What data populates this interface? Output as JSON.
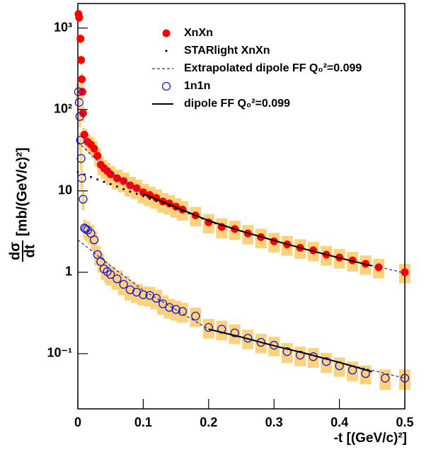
{
  "chart_data": {
    "type": "scatter",
    "y_label_numerator": "dσ",
    "y_label_denominator": "dt",
    "y_label_unit": "[mb/(GeV/c)²]",
    "x_label": "-t [(GeV/c)²]",
    "xlim": [
      0,
      0.5
    ],
    "xticks": [
      0,
      0.1,
      0.2,
      0.3,
      0.4,
      0.5
    ],
    "ylim": [
      0.021,
      2000
    ],
    "log_y": true,
    "yticks": [
      {
        "value": 0.1,
        "label": "10⁻¹"
      },
      1,
      10,
      {
        "value": 100,
        "label": "10²"
      },
      {
        "value": 1000,
        "label": "10³"
      }
    ],
    "legend": "top-center",
    "series": [
      {
        "name": "XnXn",
        "style": "filled-circle",
        "color": "#ff0000",
        "band_color": "#fcd27e",
        "x": [
          0.001,
          0.002,
          0.004,
          0.005,
          0.006,
          0.007,
          0.008,
          0.01,
          0.015,
          0.02,
          0.025,
          0.03,
          0.035,
          0.04,
          0.045,
          0.05,
          0.06,
          0.07,
          0.08,
          0.09,
          0.1,
          0.11,
          0.12,
          0.13,
          0.14,
          0.15,
          0.16,
          0.18,
          0.2,
          0.22,
          0.24,
          0.26,
          0.28,
          0.3,
          0.32,
          0.34,
          0.36,
          0.38,
          0.4,
          0.42,
          0.44,
          0.46,
          0.5
        ],
        "values": [
          1480,
          1340,
          740,
          405,
          235,
          165,
          90,
          49,
          40,
          37,
          33,
          27,
          21,
          19,
          17.5,
          16,
          14.3,
          13.2,
          11.7,
          10.8,
          9.6,
          8.9,
          8.2,
          7.4,
          7.0,
          6.4,
          5.9,
          5.0,
          4.1,
          3.6,
          3.4,
          3.0,
          2.7,
          2.4,
          2.2,
          2.0,
          1.86,
          1.65,
          1.52,
          1.4,
          1.27,
          1.15,
          1.0
        ],
        "errors": [
          200,
          180,
          100,
          55,
          40,
          30,
          20,
          10,
          9,
          9,
          8,
          7,
          5.5,
          5,
          4.7,
          4.3,
          3.9,
          3.6,
          3.2,
          2.9,
          2.6,
          2.4,
          2.2,
          2.0,
          1.9,
          1.7,
          1.6,
          1.35,
          1.1,
          1.0,
          0.9,
          0.8,
          0.73,
          0.65,
          0.6,
          0.54,
          0.5,
          0.45,
          0.41,
          0.38,
          0.34,
          0.31,
          0.27
        ]
      },
      {
        "name": "STARlight XnXn",
        "style": "dot",
        "color": "#000000",
        "x": [
          0,
          0.01,
          0.02,
          0.03,
          0.04,
          0.05,
          0.06,
          0.07,
          0.08,
          0.09,
          0.1,
          0.11,
          0.12,
          0.13,
          0.14,
          0.15,
          0.16,
          0.17,
          0.18,
          0.19,
          0.2,
          0.21,
          0.22
        ],
        "values": [
          17,
          15.9,
          14.8,
          13.8,
          12.9,
          12.1,
          11.3,
          10.5,
          9.8,
          9.2,
          8.6,
          8.0,
          7.5,
          7.0,
          6.5,
          6.1,
          5.7,
          5.3,
          5.0,
          4.6,
          4.3,
          4.0,
          3.8
        ]
      },
      {
        "name": "Extrapolated dipole FF Q₀²=0.099",
        "style": "dashed",
        "color": "#2222dd",
        "x": [
          0,
          0.02,
          0.05,
          0.1,
          0.2,
          0.3,
          0.4,
          0.5,
          null,
          0,
          0.05,
          0.1,
          0.2,
          0.3,
          0.4,
          0.5
        ],
        "values": [
          40,
          28,
          17,
          9.2,
          4.3,
          2.45,
          1.5,
          0.98,
          null,
          2.5,
          1.2,
          0.6,
          0.2,
          0.125,
          0.078,
          0.05
        ]
      },
      {
        "name": "1n1n",
        "style": "open-circle",
        "color": "#1a1acc",
        "band_color": "#fcd27e",
        "x": [
          0.001,
          0.002,
          0.003,
          0.004,
          0.005,
          0.006,
          0.008,
          0.01,
          0.012,
          0.015,
          0.02,
          0.025,
          0.03,
          0.035,
          0.04,
          0.045,
          0.05,
          0.06,
          0.07,
          0.08,
          0.09,
          0.1,
          0.11,
          0.12,
          0.13,
          0.14,
          0.15,
          0.16,
          0.18,
          0.2,
          0.22,
          0.24,
          0.26,
          0.28,
          0.3,
          0.32,
          0.34,
          0.36,
          0.38,
          0.4,
          0.42,
          0.44,
          0.47,
          0.5
        ],
        "values": [
          165,
          122,
          82,
          42,
          25,
          14.3,
          7.9,
          3.5,
          3.4,
          3.3,
          3.0,
          2.5,
          1.65,
          1.35,
          1.1,
          1.02,
          0.94,
          0.83,
          0.71,
          0.61,
          0.57,
          0.53,
          0.52,
          0.48,
          0.41,
          0.37,
          0.35,
          0.33,
          0.29,
          0.21,
          0.2,
          0.18,
          0.155,
          0.138,
          0.127,
          0.106,
          0.096,
          0.092,
          0.08,
          0.071,
          0.063,
          0.057,
          0.05,
          0.05
        ],
        "errors": [
          45,
          33,
          22,
          11,
          7,
          3.9,
          2.1,
          0.95,
          0.9,
          0.9,
          0.8,
          0.68,
          0.45,
          0.36,
          0.3,
          0.28,
          0.25,
          0.22,
          0.19,
          0.16,
          0.15,
          0.14,
          0.14,
          0.13,
          0.11,
          0.1,
          0.095,
          0.09,
          0.078,
          0.057,
          0.054,
          0.049,
          0.042,
          0.037,
          0.034,
          0.029,
          0.026,
          0.025,
          0.022,
          0.019,
          0.017,
          0.015,
          0.014,
          0.014
        ]
      },
      {
        "name": "dipole FF  Q₀²=0.099",
        "style": "solid",
        "color": "#000000",
        "x": [
          0.1,
          0.15,
          0.2,
          0.25,
          0.3,
          0.35,
          0.4,
          0.45,
          null,
          0.2,
          0.25,
          0.3,
          0.35,
          0.4,
          0.45
        ],
        "values": [
          9.2,
          6.3,
          4.3,
          3.2,
          2.45,
          1.9,
          1.5,
          1.2,
          null,
          0.2,
          0.16,
          0.125,
          0.1,
          0.078,
          0.06
        ]
      }
    ]
  }
}
